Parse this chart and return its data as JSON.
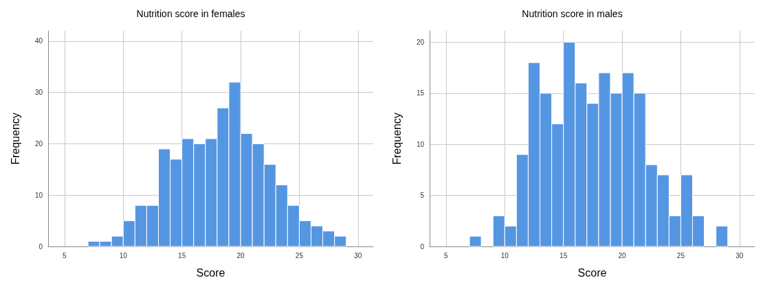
{
  "chart_data": [
    {
      "type": "histogram",
      "title": "Nutrition score in females",
      "xlabel": "Score",
      "ylabel": "Frequency",
      "color": "#5596e2",
      "bins": [
        7,
        8,
        9,
        10,
        11,
        12,
        13,
        14,
        15,
        16,
        17,
        18,
        19,
        20,
        21,
        22,
        23,
        24,
        25,
        26,
        27,
        28,
        29
      ],
      "values": [
        1,
        1,
        2,
        5,
        8,
        8,
        19,
        17,
        21,
        20,
        21,
        27,
        32,
        22,
        20,
        16,
        12,
        8,
        5,
        4,
        3,
        2
      ],
      "xlim": [
        3.6,
        31.3
      ],
      "xticks": [
        5,
        10,
        15,
        20,
        25,
        30
      ],
      "ylim": [
        0,
        42
      ],
      "yticks": [
        0,
        10,
        20,
        30,
        40
      ],
      "grid": true
    },
    {
      "type": "histogram",
      "title": "Nutrition score in males",
      "xlabel": "Score",
      "ylabel": "Frequency",
      "color": "#5596e2",
      "bins": [
        7,
        8,
        9,
        10,
        11,
        12,
        13,
        14,
        15,
        16,
        17,
        18,
        19,
        20,
        21,
        22,
        23,
        24,
        25,
        26,
        27,
        28,
        29
      ],
      "values": [
        1,
        0,
        3,
        2,
        9,
        18,
        15,
        12,
        20,
        16,
        14,
        17,
        15,
        17,
        15,
        8,
        7,
        3,
        7,
        3,
        0,
        2
      ],
      "xlim": [
        3.6,
        31.3
      ],
      "xticks": [
        5,
        10,
        15,
        20,
        25,
        30
      ],
      "ylim": [
        0,
        21.1
      ],
      "yticks": [
        0,
        5,
        10,
        15,
        20
      ],
      "grid": true
    }
  ]
}
